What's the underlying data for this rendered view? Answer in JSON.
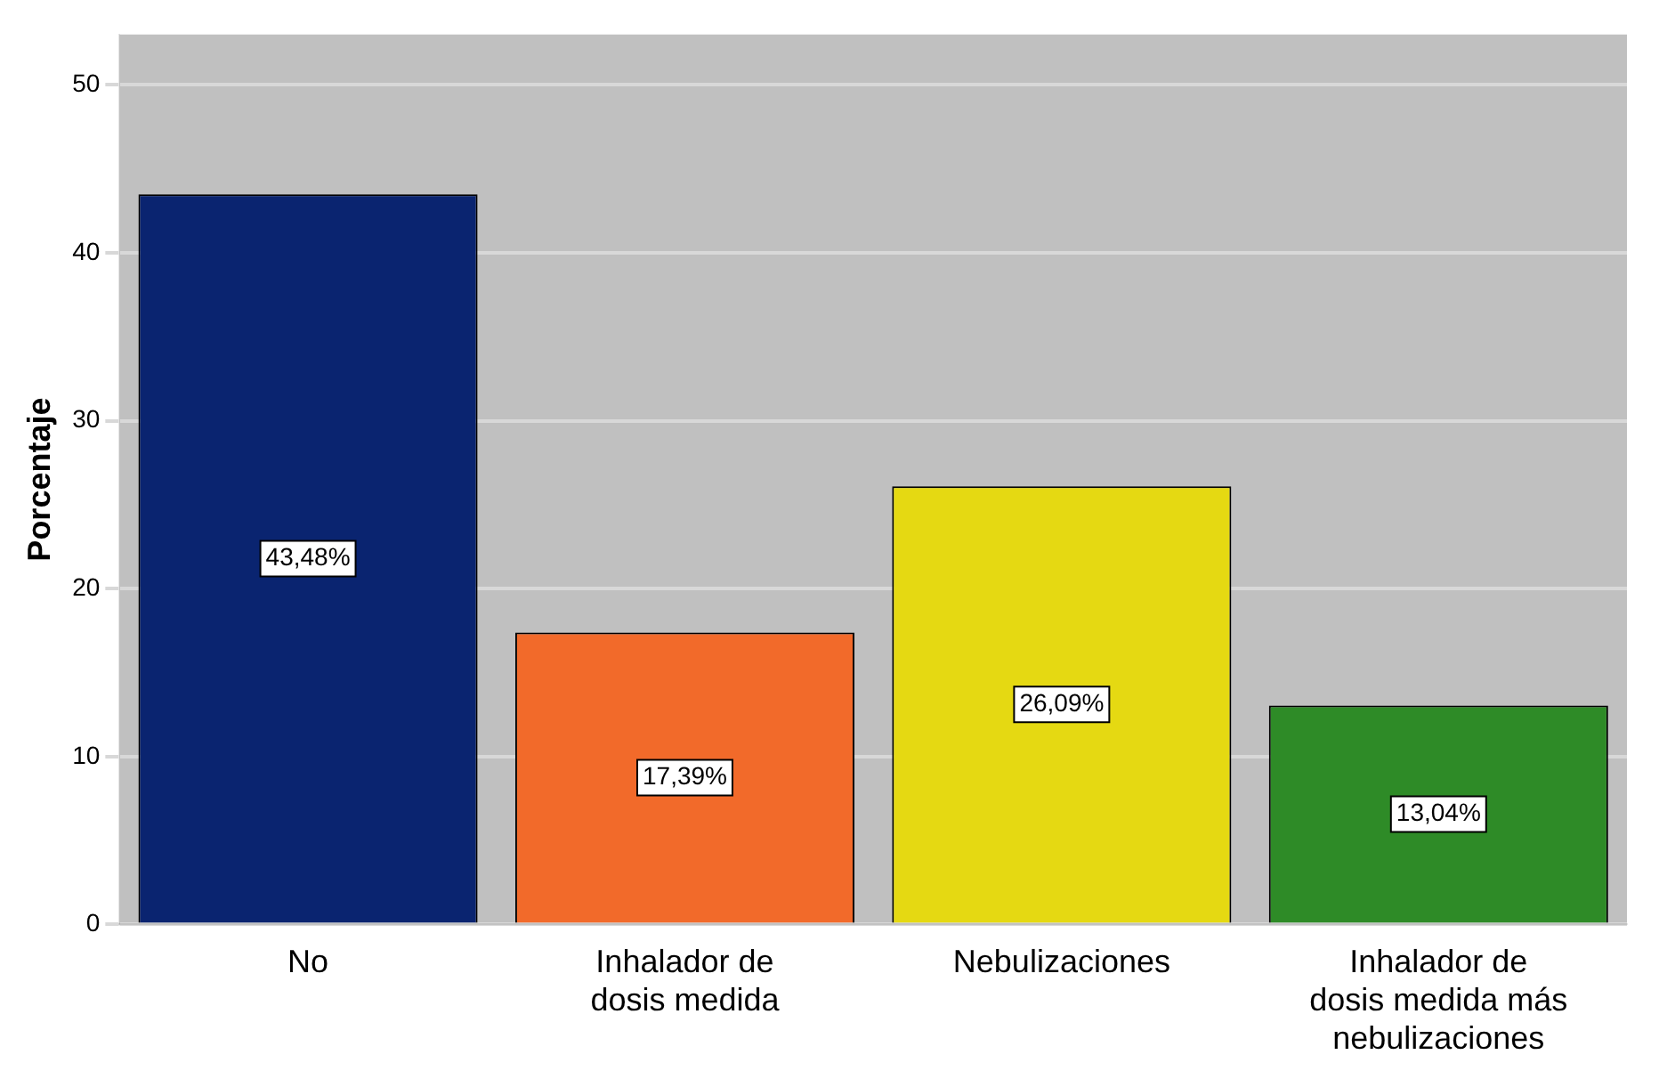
{
  "chart_data": {
    "type": "bar",
    "ylabel": "Porcentaje",
    "categories": [
      "No",
      "Inhalador de dosis medida",
      "Nebulizaciones",
      "Inhalador de dosis medida más nebulizaciones"
    ],
    "values": [
      43.48,
      17.39,
      26.09,
      13.04
    ],
    "colors": [
      "#0a2470",
      "#f26a2a",
      "#e5d912",
      "#2e8b27"
    ],
    "value_labels": [
      "43,48%",
      "17,39%",
      "26,09%",
      "13,04%"
    ],
    "ylim": [
      0,
      53
    ],
    "yticks": [
      0,
      10,
      20,
      30,
      40,
      50
    ],
    "grid": "y"
  }
}
